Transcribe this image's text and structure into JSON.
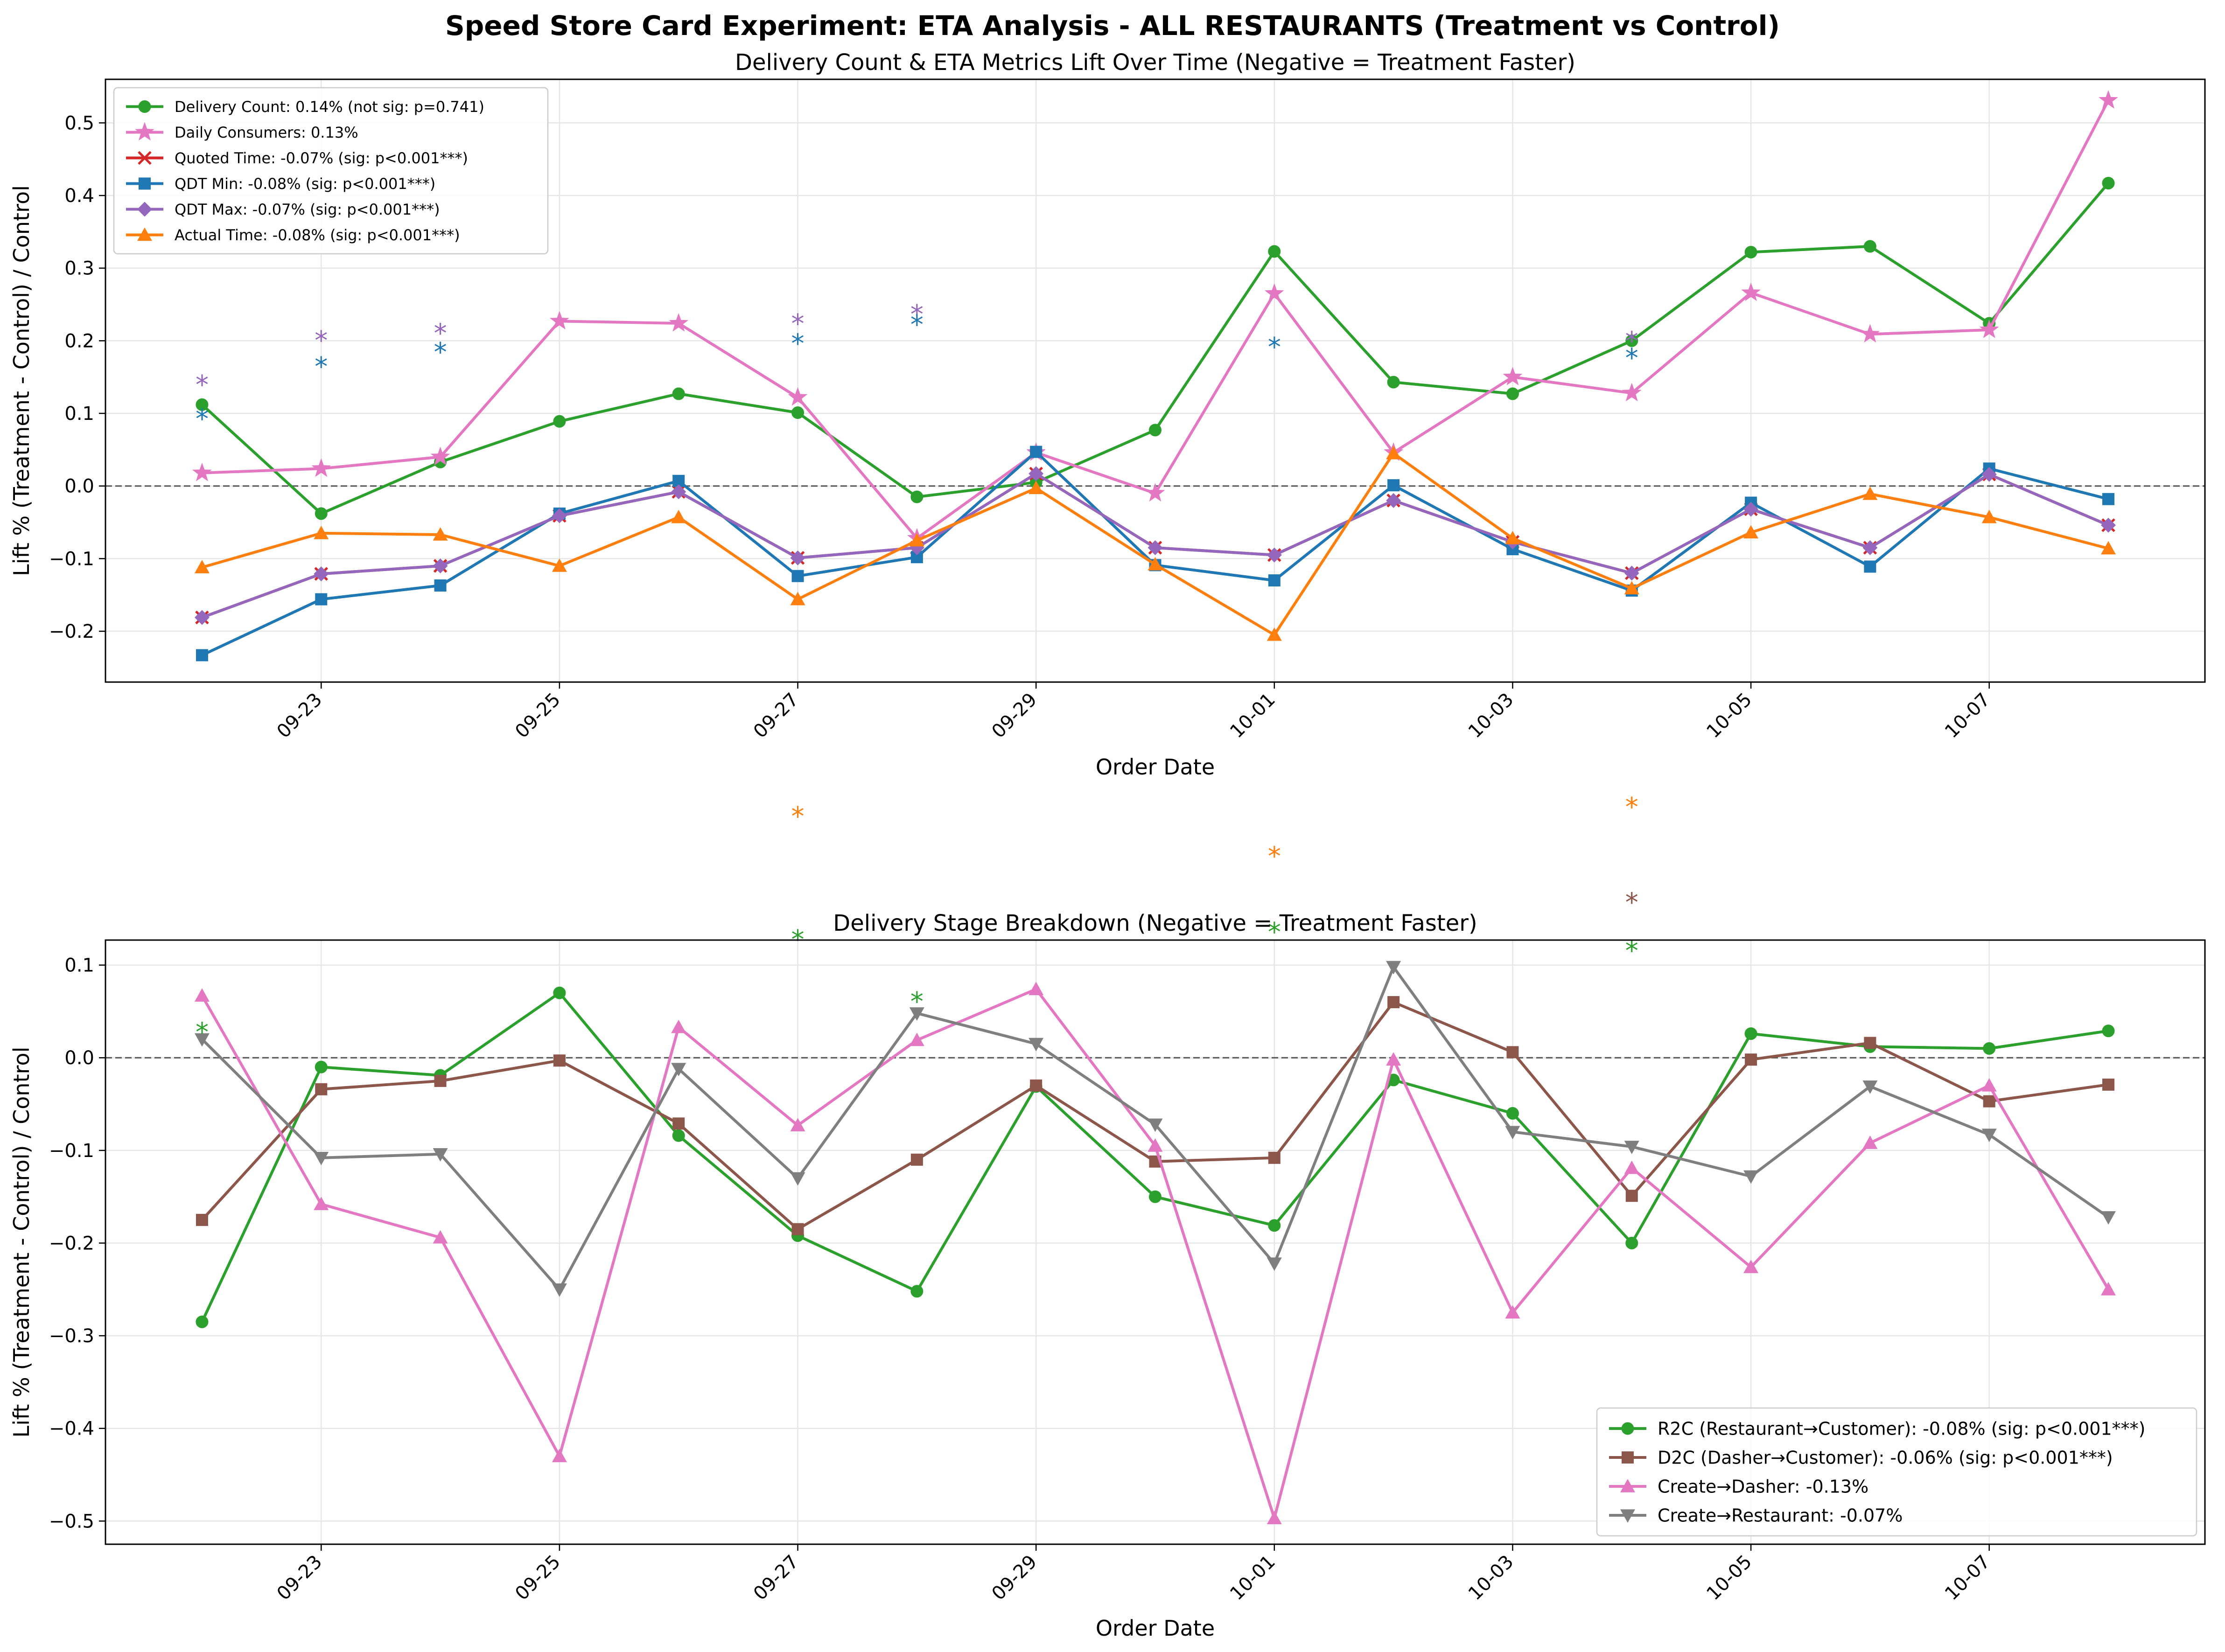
{
  "title": "Speed Store Card Experiment: ETA Analysis - ALL RESTAURANTS (Treatment vs Control)",
  "chart_data": [
    {
      "type": "line",
      "title": "Delivery Count & ETA Metrics Lift Over Time (Negative = Treatment Faster)",
      "xlabel": "Order Date",
      "ylabel": "Lift % (Treatment - Control) / Control",
      "x": [
        "09-22",
        "09-23",
        "09-24",
        "09-25",
        "09-26",
        "09-27",
        "09-28",
        "09-29",
        "09-30",
        "10-01",
        "10-02",
        "10-03",
        "10-04",
        "10-05",
        "10-06",
        "10-07",
        "10-08"
      ],
      "xticks": [
        "09-23",
        "09-25",
        "09-27",
        "09-29",
        "10-01",
        "10-03",
        "10-05",
        "10-07"
      ],
      "ylim": [
        -0.27,
        0.56
      ],
      "yticks": [
        "-0.2",
        "-0.1",
        "0.0",
        "0.1",
        "0.2",
        "0.3",
        "0.4",
        "0.5"
      ],
      "grid": true,
      "legend_position": "top-left",
      "series": [
        {
          "name": "Delivery Count: 0.14% (not sig: p=0.741)",
          "color": "#2ca02c",
          "marker": "circle",
          "values": [
            0.112,
            -0.038,
            0.033,
            0.089,
            0.127,
            0.101,
            -0.015,
            0.005,
            0.077,
            0.323,
            0.143,
            0.127,
            0.2,
            0.322,
            0.33,
            0.224,
            0.417
          ]
        },
        {
          "name": "Daily Consumers: 0.13%",
          "color": "#e377c2",
          "marker": "star",
          "values": [
            0.018,
            0.024,
            0.04,
            0.227,
            0.224,
            0.122,
            -0.072,
            0.046,
            -0.01,
            0.265,
            0.046,
            0.15,
            0.128,
            0.266,
            0.209,
            0.215,
            0.531
          ]
        },
        {
          "name": "Quoted Time: -0.07% (sig: p<0.001***)",
          "color": "#d62728",
          "marker": "x",
          "values": [
            -0.181,
            -0.121,
            -0.11,
            -0.041,
            -0.008,
            -0.099,
            -0.085,
            0.017,
            -0.085,
            -0.095,
            -0.02,
            -0.077,
            -0.12,
            -0.032,
            -0.085,
            0.016,
            -0.054
          ]
        },
        {
          "name": "QDT Min: -0.08% (sig: p<0.001***)",
          "color": "#1f77b4",
          "marker": "square",
          "values": [
            -0.233,
            -0.156,
            -0.137,
            -0.038,
            0.007,
            -0.124,
            -0.098,
            0.047,
            -0.109,
            -0.13,
            0.001,
            -0.087,
            -0.144,
            -0.023,
            -0.111,
            0.024,
            -0.018
          ]
        },
        {
          "name": "QDT Max: -0.07% (sig: p<0.001***)",
          "color": "#9467bd",
          "marker": "diamond",
          "values": [
            -0.181,
            -0.121,
            -0.11,
            -0.041,
            -0.008,
            -0.099,
            -0.085,
            0.017,
            -0.085,
            -0.095,
            -0.02,
            -0.077,
            -0.12,
            -0.032,
            -0.085,
            0.016,
            -0.054
          ]
        },
        {
          "name": "Actual Time: -0.08% (sig: p<0.001***)",
          "color": "#ff7f0e",
          "marker": "triangle",
          "values": [
            -0.112,
            -0.065,
            -0.067,
            -0.11,
            -0.043,
            -0.156,
            -0.075,
            -0.003,
            -0.108,
            -0.205,
            0.045,
            -0.072,
            -0.141,
            -0.064,
            -0.011,
            -0.043,
            -0.086
          ]
        }
      ],
      "annotations": [
        {
          "text": "*",
          "x": "09-22",
          "y": 0.145,
          "color": "#9467bd"
        },
        {
          "text": "*",
          "x": "09-22",
          "y": 0.098,
          "color": "#1f77b4"
        },
        {
          "text": "*",
          "x": "09-23",
          "y": 0.206,
          "color": "#9467bd"
        },
        {
          "text": "*",
          "x": "09-23",
          "y": 0.17,
          "color": "#1f77b4"
        },
        {
          "text": "*",
          "x": "09-24",
          "y": 0.216,
          "color": "#9467bd"
        },
        {
          "text": "*",
          "x": "09-24",
          "y": 0.19,
          "color": "#1f77b4"
        },
        {
          "text": "*",
          "x": "09-27",
          "y": 0.229,
          "color": "#9467bd"
        },
        {
          "text": "*",
          "x": "09-27",
          "y": 0.202,
          "color": "#1f77b4"
        },
        {
          "text": "*",
          "x": "09-28",
          "y": 0.242,
          "color": "#9467bd"
        },
        {
          "text": "*",
          "x": "09-28",
          "y": 0.228,
          "color": "#1f77b4"
        },
        {
          "text": "*",
          "x": "10-01",
          "y": 0.197,
          "color": "#1f77b4"
        },
        {
          "text": "*",
          "x": "10-04",
          "y": 0.205,
          "color": "#9467bd"
        },
        {
          "text": "*",
          "x": "10-04",
          "y": 0.182,
          "color": "#1f77b4"
        }
      ]
    },
    {
      "type": "line",
      "title": "Delivery Stage Breakdown (Negative = Treatment Faster)",
      "xlabel": "Order Date",
      "ylabel": "Lift % (Treatment - Control) / Control",
      "x": [
        "09-22",
        "09-23",
        "09-24",
        "09-25",
        "09-26",
        "09-27",
        "09-28",
        "09-29",
        "09-30",
        "10-01",
        "10-02",
        "10-03",
        "10-04",
        "10-05",
        "10-06",
        "10-07",
        "10-08"
      ],
      "xticks": [
        "09-23",
        "09-25",
        "09-27",
        "09-29",
        "10-01",
        "10-03",
        "10-05",
        "10-07"
      ],
      "ylim": [
        -0.525,
        0.127
      ],
      "yticks": [
        "-0.5",
        "-0.4",
        "-0.3",
        "-0.2",
        "-0.1",
        "0.0",
        "0.1"
      ],
      "grid": true,
      "legend_position": "lower-right",
      "series": [
        {
          "name": "R2C (Restaurant→Customer): -0.08% (sig: p<0.001***)",
          "color": "#2ca02c",
          "marker": "circle",
          "values": [
            -0.285,
            -0.01,
            -0.019,
            0.07,
            -0.084,
            -0.192,
            -0.252,
            -0.031,
            -0.15,
            -0.181,
            -0.024,
            -0.06,
            -0.2,
            0.026,
            0.012,
            0.01,
            0.029
          ]
        },
        {
          "name": "D2C (Dasher→Customer): -0.06% (sig: p<0.001***)",
          "color": "#8c564b",
          "marker": "square",
          "values": [
            -0.175,
            -0.034,
            -0.025,
            -0.003,
            -0.071,
            -0.185,
            -0.11,
            -0.03,
            -0.112,
            -0.108,
            0.06,
            0.006,
            -0.149,
            -0.002,
            0.016,
            -0.047,
            -0.029
          ]
        },
        {
          "name": "Create→Dasher: -0.13%",
          "color": "#e377c2",
          "marker": "triangle",
          "values": [
            0.067,
            -0.158,
            -0.194,
            -0.43,
            0.033,
            -0.073,
            0.019,
            0.074,
            -0.095,
            -0.497,
            -0.002,
            -0.275,
            -0.119,
            -0.226,
            -0.092,
            -0.03,
            -0.25
          ]
        },
        {
          "name": "Create→Restaurant: -0.07%",
          "color": "#7f7f7f",
          "marker": "triangle-down",
          "values": [
            0.02,
            -0.108,
            -0.104,
            -0.25,
            -0.012,
            -0.13,
            0.048,
            0.015,
            -0.072,
            -0.222,
            0.098,
            -0.08,
            -0.096,
            -0.128,
            -0.031,
            -0.083,
            -0.172
          ]
        }
      ],
      "annotations": [
        {
          "text": "*",
          "x": "09-22",
          "y": 0.032,
          "color": "#2ca02c"
        },
        {
          "text": "*",
          "x": "09-27",
          "y": 0.265,
          "color": "#ff7f0e"
        },
        {
          "text": "*",
          "x": "09-27",
          "y": 0.132,
          "color": "#2ca02c"
        },
        {
          "text": "*",
          "x": "09-28",
          "y": 0.065,
          "color": "#2ca02c"
        },
        {
          "text": "*",
          "x": "10-01",
          "y": 0.222,
          "color": "#ff7f0e"
        },
        {
          "text": "*",
          "x": "10-01",
          "y": 0.14,
          "color": "#2ca02c"
        },
        {
          "text": "*",
          "x": "10-04",
          "y": 0.275,
          "color": "#ff7f0e"
        },
        {
          "text": "*",
          "x": "10-04",
          "y": 0.172,
          "color": "#8c564b"
        },
        {
          "text": "*",
          "x": "10-04",
          "y": 0.12,
          "color": "#2ca02c"
        }
      ]
    }
  ]
}
